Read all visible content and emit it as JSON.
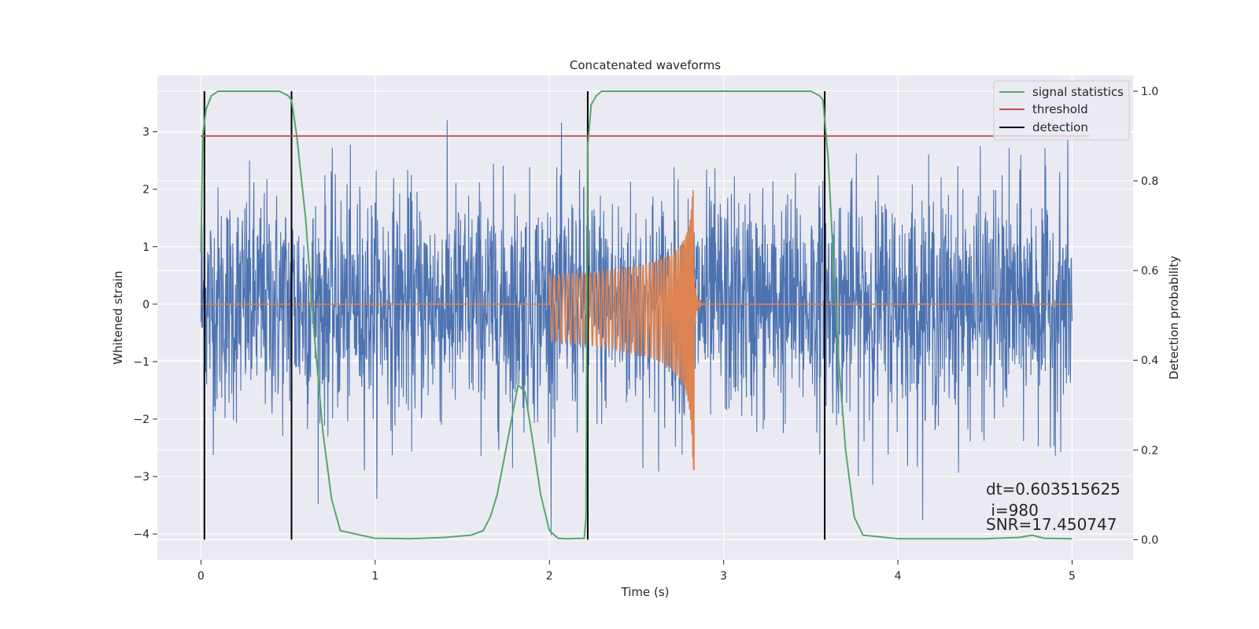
{
  "chart_data": {
    "type": "line",
    "title": "Concatenated waveforms",
    "xlabel": "Time (s)",
    "ylabel": "Whitened strain",
    "y2label": "Detection probability",
    "xlim": [
      -0.25,
      5.35
    ],
    "ylim": [
      -4.45,
      3.98
    ],
    "y2lim": [
      -0.045,
      1.035
    ],
    "xticks": [
      "0",
      "1",
      "2",
      "3",
      "4",
      "5"
    ],
    "yticks": [
      "3",
      "2",
      "1",
      "0",
      "−1",
      "−2",
      "−3",
      "−4"
    ],
    "y2ticks": [
      "1.0",
      "0.8",
      "0.6",
      "0.4",
      "0.2",
      "0.0"
    ],
    "grid": true,
    "legend": {
      "position": "top-right",
      "entries": [
        {
          "label": "signal statistics",
          "color": "#55a868"
        },
        {
          "label": "threshold",
          "color": "#c44e52"
        },
        {
          "label": "detection",
          "color": "#000000"
        }
      ]
    },
    "series": [
      {
        "id": "strain",
        "axis": "left",
        "color": "#4c72b0",
        "kind": "noise",
        "x_range": [
          0,
          5
        ],
        "amplitude": 1.0,
        "y_min": -4.1,
        "y_max": 3.2
      },
      {
        "id": "waveform",
        "axis": "left",
        "color": "#dd8452",
        "kind": "chirp",
        "x_start": 2.0,
        "x_end": 2.83,
        "peak": 2.0,
        "trough": -2.9
      },
      {
        "name": "signal statistics",
        "axis": "right",
        "color": "#55a868",
        "x": [
          0.0,
          0.01,
          0.03,
          0.06,
          0.1,
          0.2,
          0.3,
          0.4,
          0.45,
          0.5,
          0.52,
          0.55,
          0.6,
          0.65,
          0.7,
          0.75,
          0.8,
          1.0,
          1.2,
          1.4,
          1.55,
          1.62,
          1.66,
          1.7,
          1.75,
          1.82,
          1.86,
          1.9,
          1.95,
          2.0,
          2.05,
          2.1,
          2.2,
          2.21,
          2.22,
          2.24,
          2.27,
          2.3,
          2.4,
          3.0,
          3.5,
          3.55,
          3.57,
          3.6,
          3.63,
          3.66,
          3.7,
          3.75,
          3.8,
          4.0,
          4.5,
          4.7,
          4.77,
          4.84,
          5.0
        ],
        "y": [
          0.64,
          0.9,
          0.96,
          0.99,
          1.0,
          1.0,
          1.0,
          1.0,
          1.0,
          0.99,
          0.98,
          0.9,
          0.72,
          0.46,
          0.24,
          0.09,
          0.02,
          0.003,
          0.002,
          0.005,
          0.01,
          0.02,
          0.05,
          0.1,
          0.2,
          0.345,
          0.33,
          0.23,
          0.1,
          0.02,
          0.003,
          0.002,
          0.003,
          0.05,
          0.88,
          0.97,
          0.99,
          1.0,
          1.0,
          1.0,
          1.0,
          0.99,
          0.98,
          0.85,
          0.62,
          0.4,
          0.2,
          0.05,
          0.01,
          0.002,
          0.002,
          0.005,
          0.01,
          0.003,
          0.002
        ]
      },
      {
        "name": "threshold",
        "axis": "right",
        "color": "#c44e52",
        "x": [
          0.0,
          5.1
        ],
        "y": [
          0.9,
          0.9
        ]
      }
    ],
    "detections": [
      0.02,
      0.52,
      2.22,
      3.58
    ],
    "annotations": [
      {
        "text": "dt=0.603515625",
        "x": 4.5,
        "y": -3.33
      },
      {
        "text": " i=980",
        "x": 4.5,
        "y": -3.63
      },
      {
        "text": "SNR=17.450747",
        "x": 4.5,
        "y": -3.83
      }
    ]
  }
}
